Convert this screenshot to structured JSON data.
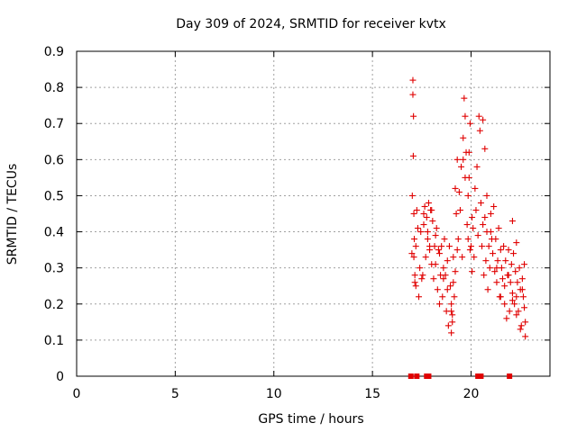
{
  "chart_data": {
    "type": "scatter",
    "title": "Day 309 of 2024, SRMTID for receiver kvtx",
    "xlabel": "GPS time / hours",
    "ylabel": "SRMTID / TECUs",
    "xlim": [
      0,
      24
    ],
    "ylim": [
      0,
      0.9
    ],
    "xticks": [
      0,
      5,
      10,
      15,
      20
    ],
    "xtick_labels": [
      "0",
      "5",
      "10",
      "15",
      "20"
    ],
    "yticks": [
      0,
      0.1,
      0.2,
      0.3,
      0.4,
      0.5,
      0.6,
      0.7,
      0.8,
      0.9
    ],
    "ytick_labels": [
      "0",
      "0.1",
      "0.2",
      "0.3",
      "0.4",
      "0.5",
      "0.6",
      "0.7",
      "0.8",
      "0.9"
    ],
    "grid": true,
    "marker": "+",
    "color": "#e00000",
    "series": [
      {
        "name": "SRMTID",
        "x": [
          17.0,
          17.02,
          17.05,
          17.05,
          17.07,
          17.08,
          17.1,
          17.12,
          17.15,
          17.2,
          17.25,
          17.3,
          17.35,
          17.4,
          17.45,
          17.55,
          17.6,
          17.65,
          17.7,
          17.75,
          17.8,
          17.85,
          17.9,
          17.95,
          18.0,
          18.05,
          18.1,
          18.15,
          18.2,
          18.25,
          18.3,
          18.35,
          18.4,
          18.45,
          18.5,
          18.55,
          18.6,
          18.65,
          18.7,
          18.75,
          18.8,
          18.85,
          18.9,
          18.95,
          19.0,
          19.05,
          19.1,
          19.15,
          19.2,
          19.25,
          19.3,
          19.35,
          19.4,
          19.45,
          19.5,
          19.55,
          19.6,
          19.65,
          19.7,
          19.75,
          19.8,
          19.85,
          19.9,
          19.95,
          20.0,
          20.05,
          20.1,
          20.15,
          20.2,
          20.25,
          20.3,
          20.35,
          20.4,
          20.45,
          20.5,
          20.55,
          20.6,
          20.65,
          20.7,
          20.75,
          20.8,
          20.85,
          20.9,
          20.95,
          21.0,
          21.05,
          21.1,
          21.15,
          21.2,
          21.25,
          21.3,
          21.35,
          21.4,
          21.45,
          21.5,
          21.55,
          21.6,
          21.65,
          21.7,
          21.75,
          21.8,
          21.85,
          21.9,
          21.95,
          22.0,
          22.05,
          22.1,
          22.15,
          22.2,
          22.25,
          22.3,
          22.35,
          22.4,
          22.45,
          22.5,
          22.55,
          22.6,
          22.65,
          22.7,
          22.75,
          17.1,
          17.15,
          17.2,
          17.5,
          17.6,
          17.8,
          17.9,
          18.0,
          18.2,
          18.4,
          18.6,
          18.8,
          19.0,
          19.05,
          19.1,
          19.2,
          19.3,
          19.6,
          19.7,
          19.85,
          19.9,
          19.95,
          20.05,
          20.6,
          20.7,
          20.8,
          21.0,
          21.3,
          21.5,
          21.7,
          21.9,
          22.1,
          22.3,
          22.5,
          22.7,
          22.1,
          22.3,
          22.6,
          22.75,
          19.0
        ],
        "y": [
          0.34,
          0.5,
          0.82,
          0.78,
          0.61,
          0.72,
          0.45,
          0.38,
          0.26,
          0.25,
          0.46,
          0.41,
          0.22,
          0.3,
          0.4,
          0.28,
          0.42,
          0.47,
          0.33,
          0.44,
          0.38,
          0.48,
          0.36,
          0.46,
          0.31,
          0.43,
          0.27,
          0.36,
          0.31,
          0.41,
          0.24,
          0.35,
          0.2,
          0.28,
          0.36,
          0.22,
          0.3,
          0.38,
          0.28,
          0.18,
          0.32,
          0.14,
          0.36,
          0.25,
          0.18,
          0.15,
          0.33,
          0.22,
          0.52,
          0.45,
          0.6,
          0.38,
          0.51,
          0.46,
          0.58,
          0.33,
          0.66,
          0.77,
          0.72,
          0.62,
          0.42,
          0.38,
          0.55,
          0.35,
          0.36,
          0.29,
          0.41,
          0.33,
          0.52,
          0.46,
          0.58,
          0.39,
          0.72,
          0.68,
          0.48,
          0.36,
          0.42,
          0.28,
          0.44,
          0.32,
          0.4,
          0.24,
          0.36,
          0.3,
          0.45,
          0.38,
          0.34,
          0.47,
          0.29,
          0.38,
          0.26,
          0.32,
          0.41,
          0.22,
          0.35,
          0.3,
          0.27,
          0.36,
          0.2,
          0.32,
          0.16,
          0.28,
          0.35,
          0.18,
          0.26,
          0.31,
          0.23,
          0.34,
          0.2,
          0.29,
          0.22,
          0.26,
          0.18,
          0.3,
          0.24,
          0.14,
          0.27,
          0.22,
          0.31,
          0.15,
          0.33,
          0.28,
          0.36,
          0.27,
          0.45,
          0.4,
          0.35,
          0.46,
          0.39,
          0.34,
          0.27,
          0.24,
          0.2,
          0.17,
          0.26,
          0.29,
          0.35,
          0.6,
          0.55,
          0.5,
          0.62,
          0.7,
          0.44,
          0.71,
          0.63,
          0.5,
          0.4,
          0.3,
          0.22,
          0.25,
          0.28,
          0.21,
          0.17,
          0.13,
          0.19,
          0.43,
          0.37,
          0.24,
          0.11,
          0.12
        ]
      }
    ],
    "gap_markers_x": [
      16.95,
      17.25,
      17.75,
      17.85,
      20.35,
      20.5,
      21.95
    ]
  }
}
